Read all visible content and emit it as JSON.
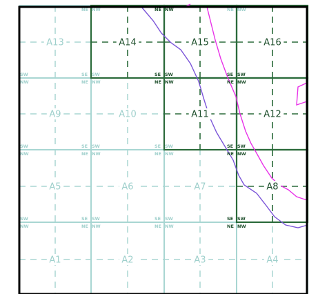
{
  "cells": [
    {
      "label": "A13",
      "active": false
    },
    {
      "label": "A14",
      "active": true
    },
    {
      "label": "A15",
      "active": true
    },
    {
      "label": "A16",
      "active": true
    },
    {
      "label": "A9",
      "active": false
    },
    {
      "label": "A10",
      "active": false
    },
    {
      "label": "A11",
      "active": true
    },
    {
      "label": "A12",
      "active": true
    },
    {
      "label": "A5",
      "active": false
    },
    {
      "label": "A6",
      "active": false
    },
    {
      "label": "A7",
      "active": false
    },
    {
      "label": "A8",
      "active": true
    },
    {
      "label": "A1",
      "active": false
    },
    {
      "label": "A2",
      "active": false
    },
    {
      "label": "A3",
      "active": false
    },
    {
      "label": "A4",
      "active": false
    }
  ],
  "corner_labels": {
    "ne": "NE",
    "nw": "NW",
    "se": "SE",
    "sw": "SW"
  },
  "colors": {
    "active_grid": "#2a6a3a",
    "inactive_grid": "#a8d6d2",
    "active_text": "#1e4f2c",
    "inactive_text": "#9fd0cc",
    "boundary_magenta": "#e832e8",
    "boundary_purple": "#7b55d8",
    "frame": "#000000"
  }
}
